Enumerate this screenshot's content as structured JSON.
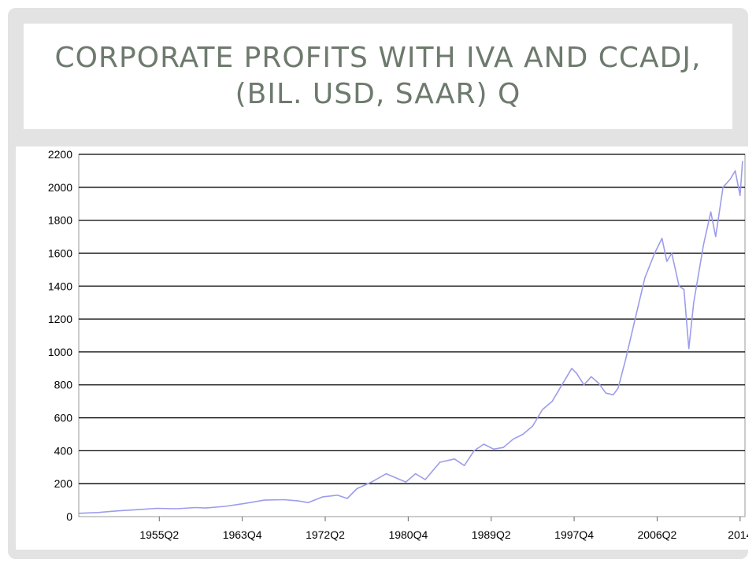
{
  "slide": {
    "title": "Corporate Profits with IVA and CCAdj, (Bil. USD, SAAR) Q"
  },
  "colors": {
    "series": "#9c9cec",
    "grid": "#000000",
    "title": "#6d7a6d",
    "frame": "#e3e3e3"
  },
  "chart_data": {
    "type": "line",
    "title": "",
    "xlabel": "",
    "ylabel": "",
    "ylim": [
      0,
      2200
    ],
    "yticks": [
      0,
      200,
      400,
      600,
      800,
      1000,
      1200,
      1400,
      1600,
      1800,
      2000,
      2200
    ],
    "xlim": [
      1947.0,
      2015.25
    ],
    "xticks": [
      {
        "label": "1955Q2",
        "x": 1955.25
      },
      {
        "label": "1963Q4",
        "x": 1963.75
      },
      {
        "label": "1972Q2",
        "x": 1972.25
      },
      {
        "label": "1980Q4",
        "x": 1980.75
      },
      {
        "label": "1989Q2",
        "x": 1989.25
      },
      {
        "label": "1997Q4",
        "x": 1997.75
      },
      {
        "label": "2006Q2",
        "x": 2006.25
      },
      {
        "label": "2014",
        "x": 2014.75
      }
    ],
    "grid": "horizontal",
    "series": [
      {
        "x": [
          1947.0,
          1949.0,
          1951.0,
          1953.0,
          1955.0,
          1957.0,
          1959.0,
          1960.0,
          1962.0,
          1964.0,
          1966.0,
          1968.0,
          1969.5,
          1970.5,
          1972.0,
          1973.5,
          1974.5,
          1975.5,
          1977.0,
          1978.5,
          1979.5,
          1980.5,
          1981.5,
          1982.5,
          1984.0,
          1985.5,
          1986.5,
          1987.5,
          1988.5,
          1989.5,
          1990.5,
          1991.5,
          1992.5,
          1993.5,
          1994.5,
          1995.5,
          1996.5,
          1997.5,
          1998.0,
          1998.75,
          1999.5,
          2000.25,
          2001.0,
          2001.75,
          2002.25,
          2003.0,
          2004.0,
          2005.0,
          2006.0,
          2006.75,
          2007.25,
          2007.75,
          2008.5,
          2009.0,
          2009.5,
          2010.0,
          2011.0,
          2011.75,
          2012.25,
          2013.0,
          2013.75,
          2014.25,
          2014.75,
          2015.0
        ],
        "y": [
          20,
          25,
          35,
          42,
          50,
          48,
          55,
          52,
          62,
          80,
          100,
          103,
          95,
          85,
          120,
          130,
          110,
          170,
          210,
          260,
          235,
          210,
          260,
          225,
          330,
          350,
          310,
          400,
          440,
          410,
          420,
          470,
          500,
          550,
          650,
          700,
          800,
          900,
          870,
          800,
          850,
          810,
          750,
          740,
          780,
          950,
          1200,
          1450,
          1600,
          1690,
          1550,
          1600,
          1400,
          1380,
          1020,
          1300,
          1650,
          1850,
          1700,
          2000,
          2050,
          2100,
          1950,
          2160
        ]
      }
    ]
  }
}
